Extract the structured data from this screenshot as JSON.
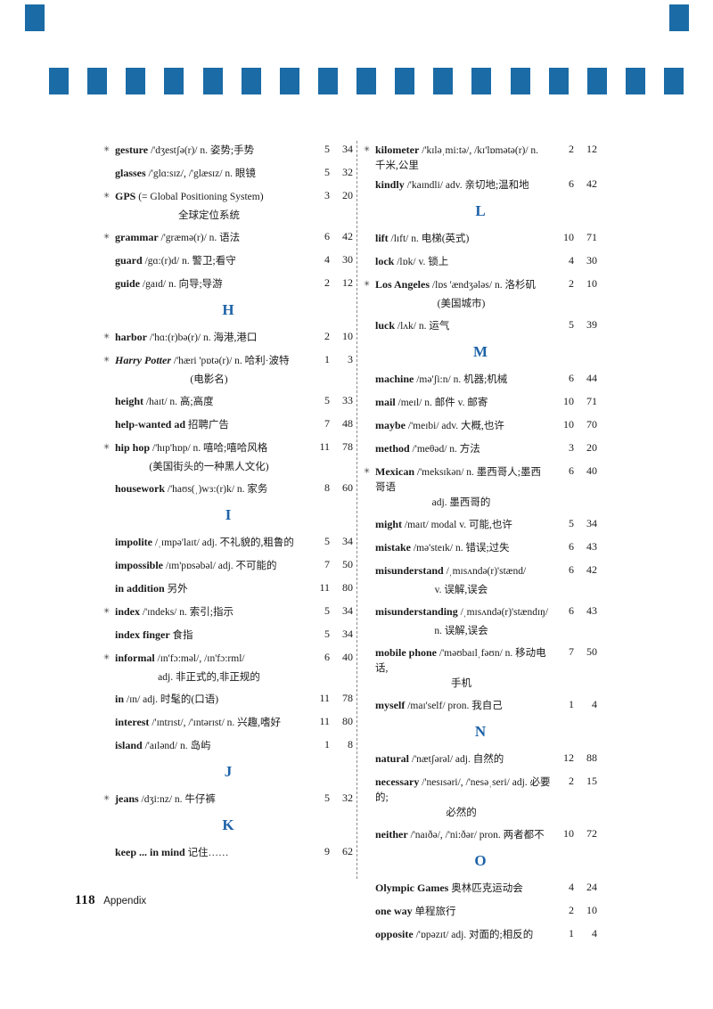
{
  "page": {
    "accent": "#1b6ba6",
    "letter_color": "#1e63a8",
    "banner_square_count": 17,
    "footer": {
      "page_number": "118",
      "label": "Appendix"
    }
  },
  "glossary": {
    "left": [
      {
        "type": "entry",
        "star": true,
        "word": "gesture",
        "body": "/'dʒestʃə(r)/ n. 姿势;手势",
        "unit": "5",
        "page": "34"
      },
      {
        "type": "entry",
        "star": false,
        "word": "glasses",
        "body": "/'glɑ:sɪz/, /'glæsɪz/ n. 眼镜",
        "unit": "5",
        "page": "32"
      },
      {
        "type": "entry",
        "star": true,
        "word": "GPS",
        "body": "(= Global Positioning System)",
        "unit": "3",
        "page": "20",
        "cont": [
          "全球定位系统"
        ]
      },
      {
        "type": "entry",
        "star": true,
        "word": "grammar",
        "body": "/'græmə(r)/ n. 语法",
        "unit": "6",
        "page": "42"
      },
      {
        "type": "entry",
        "star": false,
        "word": "guard",
        "body": "/gɑ:(r)d/ n. 警卫;看守",
        "unit": "4",
        "page": "30"
      },
      {
        "type": "entry",
        "star": false,
        "word": "guide",
        "body": "/gaɪd/ n. 向导;导游",
        "unit": "2",
        "page": "12"
      },
      {
        "type": "section",
        "letter": "H"
      },
      {
        "type": "entry",
        "star": true,
        "word": "harbor",
        "body": "/'hɑ:(r)bə(r)/ n. 海港,港口",
        "unit": "2",
        "page": "10"
      },
      {
        "type": "entry",
        "star": true,
        "word": "Harry Potter",
        "italic": true,
        "body": "/'hæri 'pɒtə(r)/ n. 哈利·波特",
        "unit": "1",
        "page": "3",
        "cont": [
          "(电影名)"
        ]
      },
      {
        "type": "entry",
        "star": false,
        "word": "height",
        "body": "/haɪt/ n. 高;高度",
        "unit": "5",
        "page": "33"
      },
      {
        "type": "entry",
        "star": false,
        "word": "help-wanted ad",
        "body": "招聘广告",
        "unit": "7",
        "page": "48"
      },
      {
        "type": "entry",
        "star": true,
        "word": "hip hop",
        "body": "/'hɪp'hɒp/ n. 嘻哈;嘻哈风格",
        "unit": "11",
        "page": "78",
        "cont": [
          "(美国街头的一种黑人文化)"
        ]
      },
      {
        "type": "entry",
        "star": false,
        "word": "housework",
        "body": "/'haʊs(ˌ)wɜ:(r)k/ n. 家务",
        "unit": "8",
        "page": "60"
      },
      {
        "type": "section",
        "letter": "I"
      },
      {
        "type": "entry",
        "star": false,
        "word": "impolite",
        "body": "/ˌɪmpə'laɪt/ adj. 不礼貌的,粗鲁的",
        "unit": "5",
        "page": "34"
      },
      {
        "type": "entry",
        "star": false,
        "word": "impossible",
        "body": "/ɪm'pɒsəbəl/ adj. 不可能的",
        "unit": "7",
        "page": "50"
      },
      {
        "type": "entry",
        "star": false,
        "word": "in addition",
        "body": "另外",
        "unit": "11",
        "page": "80"
      },
      {
        "type": "entry",
        "star": true,
        "word": "index",
        "body": "/'ɪndeks/ n. 索引;指示",
        "unit": "5",
        "page": "34"
      },
      {
        "type": "entry",
        "star": false,
        "word": "index finger",
        "body": "食指",
        "unit": "5",
        "page": "34"
      },
      {
        "type": "entry",
        "star": true,
        "word": "informal",
        "body": "/ɪn'fɔ:məl/, /ɪn'fɔ:rml/",
        "unit": "6",
        "page": "40",
        "cont": [
          "adj. 非正式的,非正规的"
        ]
      },
      {
        "type": "entry",
        "star": false,
        "word": "in",
        "body": "/ɪn/ adj. 时髦的(口语)",
        "unit": "11",
        "page": "78"
      },
      {
        "type": "entry",
        "star": false,
        "word": "interest",
        "body": "/'ɪntrɪst/, /'ɪntərɪst/ n. 兴趣,嗜好",
        "unit": "11",
        "page": "80"
      },
      {
        "type": "entry",
        "star": false,
        "word": "island",
        "body": "/'aɪlənd/ n. 岛屿",
        "unit": "1",
        "page": "8"
      },
      {
        "type": "section",
        "letter": "J"
      },
      {
        "type": "entry",
        "star": true,
        "word": "jeans",
        "body": "/dʒi:nz/ n. 牛仔裤",
        "unit": "5",
        "page": "32"
      },
      {
        "type": "section",
        "letter": "K"
      },
      {
        "type": "entry",
        "star": false,
        "word": "keep ... in mind",
        "body": "记住……",
        "unit": "9",
        "page": "62"
      }
    ],
    "right": [
      {
        "type": "entry",
        "star": true,
        "word": "kilometer",
        "body": "/'kɪləˌmi:tə/, /kɪ'lɒmətə(r)/ n. 千米,公里",
        "unit": "2",
        "page": "12"
      },
      {
        "type": "entry",
        "star": false,
        "word": "kindly",
        "body": "/'kaɪndli/ adv. 亲切地;温和地",
        "unit": "6",
        "page": "42"
      },
      {
        "type": "section",
        "letter": "L"
      },
      {
        "type": "entry",
        "star": false,
        "word": "lift",
        "body": "/lɪft/ n. 电梯(英式)",
        "unit": "10",
        "page": "71"
      },
      {
        "type": "entry",
        "star": false,
        "word": "lock",
        "body": "/lɒk/ v. 锁上",
        "unit": "4",
        "page": "30"
      },
      {
        "type": "entry",
        "star": true,
        "word": "Los Angeles",
        "body": "/lɒs 'ændʒələs/ n. 洛杉矶",
        "unit": "2",
        "page": "10",
        "cont": [
          "(美国城市)"
        ]
      },
      {
        "type": "entry",
        "star": false,
        "word": "luck",
        "body": "/lʌk/ n. 运气",
        "unit": "5",
        "page": "39"
      },
      {
        "type": "section",
        "letter": "M"
      },
      {
        "type": "entry",
        "star": false,
        "word": "machine",
        "body": "/mə'ʃi:n/ n. 机器;机械",
        "unit": "6",
        "page": "44"
      },
      {
        "type": "entry",
        "star": false,
        "word": "mail",
        "body": "/meɪl/ n. 邮件 v. 邮寄",
        "unit": "10",
        "page": "71"
      },
      {
        "type": "entry",
        "star": false,
        "word": "maybe",
        "body": "/'meɪbi/ adv. 大概,也许",
        "unit": "10",
        "page": "70"
      },
      {
        "type": "entry",
        "star": false,
        "word": "method",
        "body": "/'meθəd/ n. 方法",
        "unit": "3",
        "page": "20"
      },
      {
        "type": "entry",
        "star": true,
        "word": "Mexican",
        "body": "/'meksɪkən/ n. 墨西哥人;墨西哥语",
        "unit": "6",
        "page": "40",
        "cont": [
          "adj. 墨西哥的"
        ]
      },
      {
        "type": "entry",
        "star": false,
        "word": "might",
        "body": "/maɪt/ modal v. 可能,也许",
        "unit": "5",
        "page": "34"
      },
      {
        "type": "entry",
        "star": false,
        "word": "mistake",
        "body": "/mə'steɪk/ n. 错误;过失",
        "unit": "6",
        "page": "43"
      },
      {
        "type": "entry",
        "star": false,
        "word": "misunderstand",
        "body": "/ˌmɪsʌndə(r)'stænd/",
        "unit": "6",
        "page": "42",
        "cont": [
          "v. 误解,误会"
        ]
      },
      {
        "type": "entry",
        "star": false,
        "word": "misunderstanding",
        "body": "/ˌmɪsʌndə(r)'stændɪŋ/",
        "unit": "6",
        "page": "43",
        "cont": [
          "n. 误解,误会"
        ]
      },
      {
        "type": "entry",
        "star": false,
        "word": "mobile phone",
        "body": "/'məʊbaɪlˌfəʊn/ n. 移动电话,",
        "unit": "7",
        "page": "50",
        "cont": [
          "手机"
        ]
      },
      {
        "type": "entry",
        "star": false,
        "word": "myself",
        "body": "/maɪ'self/ pron. 我自己",
        "unit": "1",
        "page": "4"
      },
      {
        "type": "section",
        "letter": "N"
      },
      {
        "type": "entry",
        "star": false,
        "word": "natural",
        "body": "/'nætʃərəl/ adj. 自然的",
        "unit": "12",
        "page": "88"
      },
      {
        "type": "entry",
        "star": false,
        "word": "necessary",
        "body": "/'nesɪsəri/, /'nesəˌseri/ adj. 必要的;",
        "unit": "2",
        "page": "15",
        "cont": [
          "必然的"
        ]
      },
      {
        "type": "entry",
        "star": false,
        "word": "neither",
        "body": "/'naɪðə/, /'ni:ðər/ pron. 两者都不",
        "unit": "10",
        "page": "72"
      },
      {
        "type": "section",
        "letter": "O"
      },
      {
        "type": "entry",
        "star": false,
        "word": "Olympic Games",
        "body": "奥林匹克运动会",
        "unit": "4",
        "page": "24"
      },
      {
        "type": "entry",
        "star": false,
        "word": "one way",
        "body": "单程旅行",
        "unit": "2",
        "page": "10"
      },
      {
        "type": "entry",
        "star": false,
        "word": "opposite",
        "body": "/'ɒpəzɪt/ adj. 对面的;相反的",
        "unit": "1",
        "page": "4"
      }
    ]
  }
}
